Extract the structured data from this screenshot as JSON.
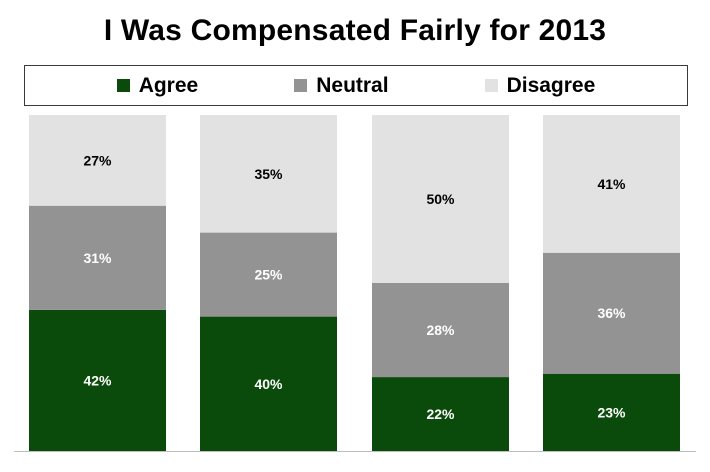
{
  "chart_data": {
    "type": "bar",
    "stacked": true,
    "title": "I Was Compensated Fairly for 2013",
    "legend": [
      "Agree",
      "Neutral",
      "Disagree"
    ],
    "legend_placement": "top",
    "categories": [
      "",
      "",
      "",
      ""
    ],
    "series": [
      {
        "name": "Agree",
        "color": "#0a4a0a",
        "values": [
          42,
          40,
          22,
          23
        ],
        "labels": [
          "42%",
          "40%",
          "22%",
          "23%"
        ]
      },
      {
        "name": "Neutral",
        "color": "#939393",
        "values": [
          31,
          25,
          28,
          36
        ],
        "labels": [
          "31%",
          "25%",
          "28%",
          "36%"
        ]
      },
      {
        "name": "Disagree",
        "color": "#e2e2e2",
        "values": [
          27,
          35,
          50,
          41
        ],
        "labels": [
          "27%",
          "35%",
          "50%",
          "41%"
        ]
      }
    ],
    "label_colors": [
      "#ffffff",
      "#ffffff",
      "#000000"
    ],
    "ylim": [
      0,
      100
    ],
    "grid": false
  }
}
